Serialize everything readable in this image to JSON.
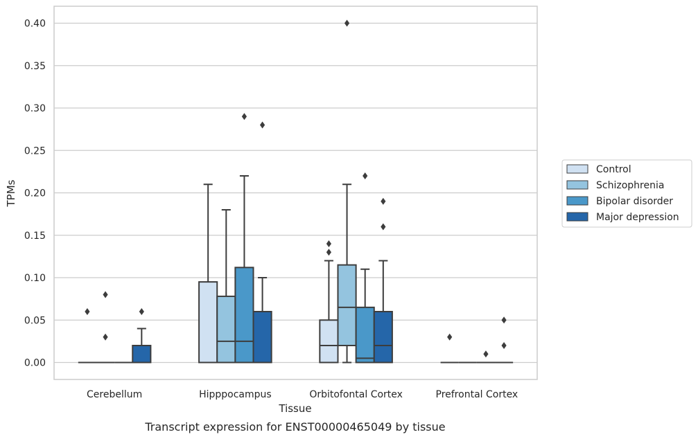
{
  "chart_data": {
    "type": "box",
    "title": "",
    "caption": "Transcript expression for ENST00000465049 by tissue",
    "xlabel": "Tissue",
    "ylabel": "TPMs",
    "ylim": [
      -0.02,
      0.42
    ],
    "yticks": [
      0.0,
      0.05,
      0.1,
      0.15,
      0.2,
      0.25,
      0.3,
      0.35,
      0.4
    ],
    "ytick_labels": [
      "0.00",
      "0.05",
      "0.10",
      "0.15",
      "0.20",
      "0.25",
      "0.30",
      "0.35",
      "0.40"
    ],
    "grid": true,
    "legend_position": "right",
    "categories": [
      "Cerebellum",
      "Hipppocampus",
      "Orbitofontal Cortex",
      "Prefrontal Cortex"
    ],
    "series": [
      {
        "name": "Control",
        "color": "#d0e1f2",
        "boxes": [
          {
            "q1": 0,
            "median": 0,
            "q3": 0,
            "whislo": 0,
            "whishi": 0,
            "fliers": [
              0.06
            ]
          },
          {
            "q1": 0,
            "median": 0,
            "q3": 0.095,
            "whislo": 0,
            "whishi": 0.21,
            "fliers": []
          },
          {
            "q1": 0,
            "median": 0.02,
            "q3": 0.05,
            "whislo": 0,
            "whishi": 0.12,
            "fliers": [
              0.13,
              0.14
            ]
          },
          {
            "q1": 0,
            "median": 0,
            "q3": 0,
            "whislo": 0,
            "whishi": 0,
            "fliers": [
              0.03
            ]
          }
        ]
      },
      {
        "name": "Schizophrenia",
        "color": "#94c4df",
        "boxes": [
          {
            "q1": 0,
            "median": 0,
            "q3": 0,
            "whislo": 0,
            "whishi": 0,
            "fliers": [
              0.08,
              0.03
            ]
          },
          {
            "q1": 0,
            "median": 0.025,
            "q3": 0.078,
            "whislo": 0,
            "whishi": 0.18,
            "fliers": []
          },
          {
            "q1": 0.02,
            "median": 0.065,
            "q3": 0.115,
            "whislo": 0,
            "whishi": 0.21,
            "fliers": [
              0.4
            ]
          },
          {
            "q1": 0,
            "median": 0,
            "q3": 0,
            "whislo": 0,
            "whishi": 0,
            "fliers": []
          }
        ]
      },
      {
        "name": "Bipolar disorder",
        "color": "#4a98c9",
        "boxes": [
          {
            "q1": 0,
            "median": 0,
            "q3": 0,
            "whislo": 0,
            "whishi": 0,
            "fliers": []
          },
          {
            "q1": 0,
            "median": 0.025,
            "q3": 0.112,
            "whislo": 0,
            "whishi": 0.22,
            "fliers": [
              0.29
            ]
          },
          {
            "q1": 0,
            "median": 0.005,
            "q3": 0.065,
            "whislo": 0,
            "whishi": 0.11,
            "fliers": [
              0.22
            ]
          },
          {
            "q1": 0,
            "median": 0,
            "q3": 0,
            "whislo": 0,
            "whishi": 0,
            "fliers": [
              0.01
            ]
          }
        ]
      },
      {
        "name": "Major depression",
        "color": "#2566a9",
        "boxes": [
          {
            "q1": 0,
            "median": 0,
            "q3": 0.02,
            "whislo": 0,
            "whishi": 0.04,
            "fliers": [
              0.06
            ]
          },
          {
            "q1": 0,
            "median": 0,
            "q3": 0.06,
            "whislo": 0,
            "whishi": 0.1,
            "fliers": [
              0.28
            ]
          },
          {
            "q1": 0,
            "median": 0.02,
            "q3": 0.06,
            "whislo": 0,
            "whishi": 0.12,
            "fliers": [
              0.16,
              0.19
            ]
          },
          {
            "q1": 0,
            "median": 0,
            "q3": 0,
            "whislo": 0,
            "whishi": 0,
            "fliers": [
              0.02,
              0.05
            ]
          }
        ]
      }
    ]
  }
}
